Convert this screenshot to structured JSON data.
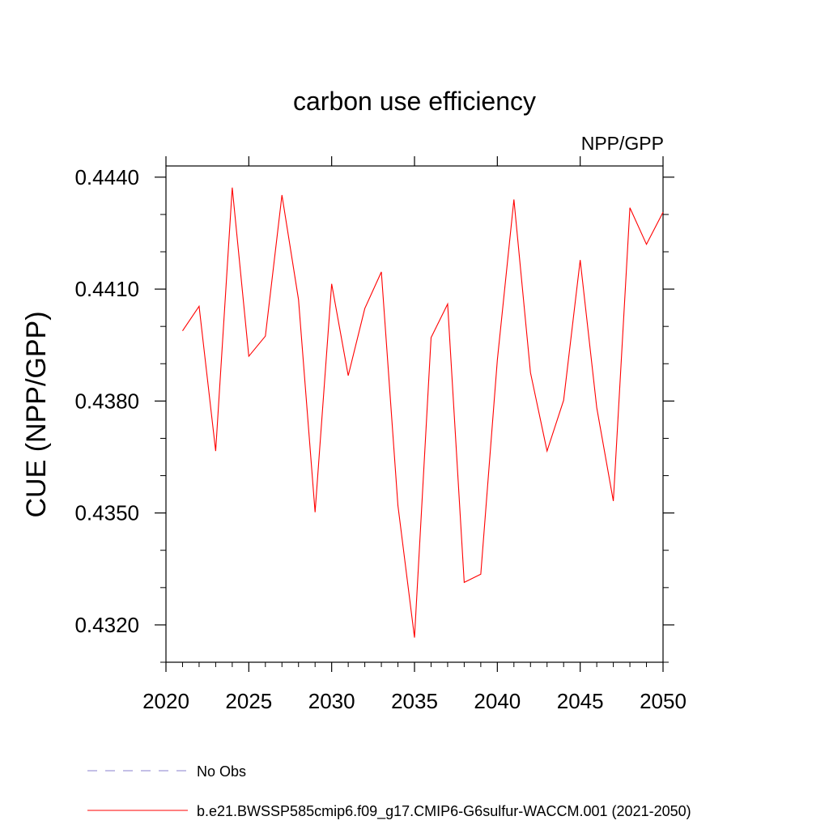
{
  "chart_data": {
    "type": "line",
    "title": "carbon use efficiency",
    "subtitle": "NPP/GPP",
    "ylabel": "CUE  (NPP/GPP)",
    "xlabel": "",
    "xlim": [
      2020,
      2050
    ],
    "ylim": [
      0.431,
      0.4443
    ],
    "xticks": [
      2020,
      2025,
      2030,
      2035,
      2040,
      2045,
      2050
    ],
    "xtick_labels": [
      "2020",
      "2025",
      "2030",
      "2035",
      "2040",
      "2045",
      "2050"
    ],
    "yticks": [
      0.432,
      0.435,
      0.438,
      0.441,
      0.444
    ],
    "ytick_labels": [
      "0.4320",
      "0.4350",
      "0.4380",
      "0.4410",
      "0.4440"
    ],
    "series": [
      {
        "name": "b.e21.BWSSP585cmip6.f09_g17.CMIP6-G6sulfur-WACCM.001 (2021-2050)",
        "color": "#ff0000",
        "x": [
          2021,
          2022,
          2023,
          2024,
          2025,
          2026,
          2027,
          2028,
          2029,
          2030,
          2031,
          2032,
          2033,
          2034,
          2035,
          2036,
          2037,
          2038,
          2039,
          2040,
          2041,
          2042,
          2043,
          2044,
          2045,
          2046,
          2047,
          2048,
          2049,
          2050
        ],
        "y": [
          0.43988,
          0.44054,
          0.43666,
          0.44372,
          0.4392,
          0.43974,
          0.44352,
          0.44072,
          0.43502,
          0.44114,
          0.43868,
          0.44048,
          0.44146,
          0.4352,
          0.43166,
          0.4397,
          0.4406,
          0.43314,
          0.43336,
          0.4391,
          0.4434,
          0.43876,
          0.43666,
          0.43802,
          0.44178,
          0.43782,
          0.43532,
          0.44318,
          0.4422,
          0.44306
        ]
      },
      {
        "name": "No Obs",
        "color": "#8a7fcf",
        "x": [],
        "y": []
      }
    ],
    "legend": {
      "placement": "bottom-left",
      "entries": [
        "No Obs",
        "b.e21.BWSSP585cmip6.f09_g17.CMIP6-G6sulfur-WACCM.001 (2021-2050)"
      ]
    },
    "grid": false
  }
}
